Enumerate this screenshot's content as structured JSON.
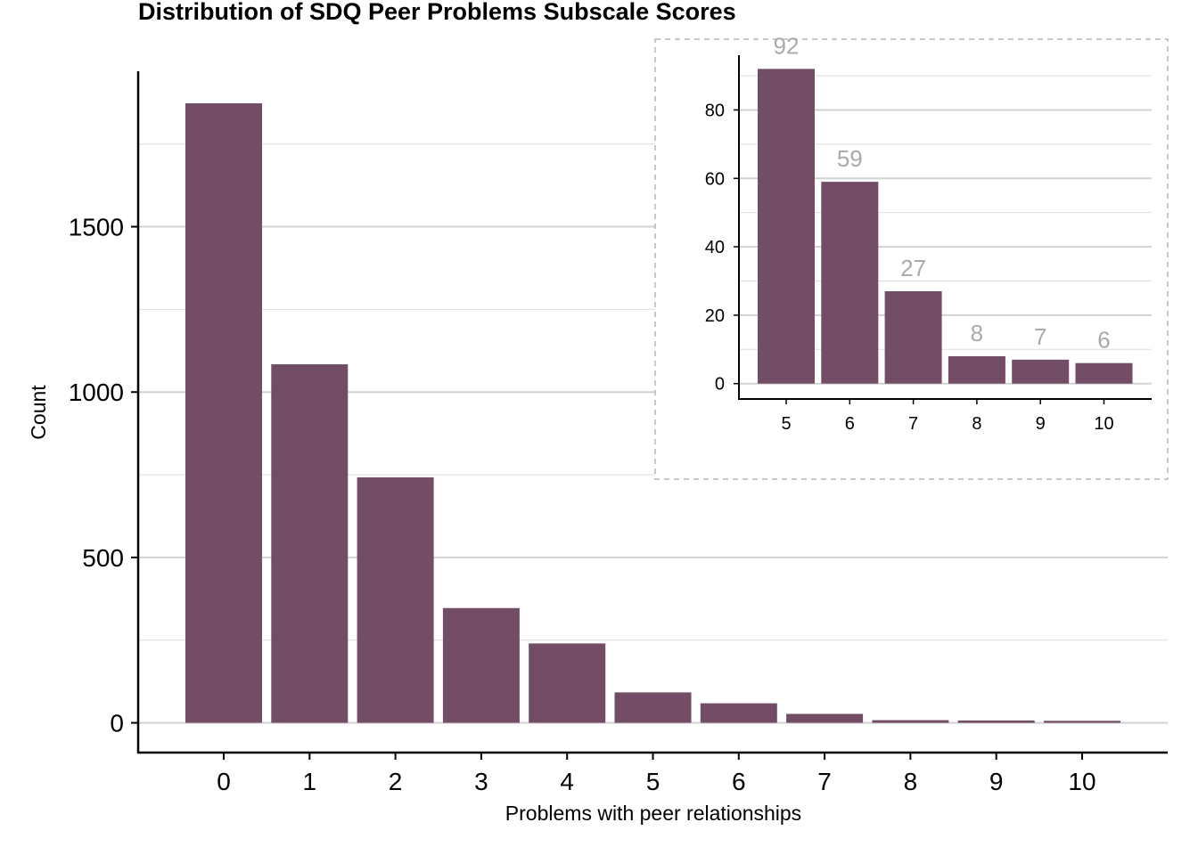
{
  "chart_data": {
    "type": "bar",
    "title": "Distribution of SDQ Peer Problems Subscale Scores",
    "xlabel": "Problems with peer relationships",
    "ylabel": "Count",
    "categories": [
      "0",
      "1",
      "2",
      "3",
      "4",
      "5",
      "6",
      "7",
      "8",
      "9",
      "10"
    ],
    "values": [
      1873,
      1084,
      742,
      347,
      240,
      92,
      59,
      27,
      8,
      7,
      6
    ],
    "ylim": [
      -90,
      1970
    ],
    "yticks": [
      0,
      500,
      1000,
      1500
    ],
    "grid": true,
    "bar_color": "#734c66",
    "inset": {
      "type": "bar",
      "categories": [
        "5",
        "6",
        "7",
        "8",
        "9",
        "10"
      ],
      "values": [
        92,
        59,
        27,
        8,
        7,
        6
      ],
      "data_labels": [
        "92",
        "59",
        "27",
        "8",
        "7",
        "6"
      ],
      "ylim": [
        -4.5,
        96
      ],
      "yticks": [
        0,
        20,
        40,
        60,
        80
      ],
      "grid": true,
      "border": "dashed",
      "bar_color": "#734c66",
      "label_color": "#aaaaaa"
    }
  }
}
